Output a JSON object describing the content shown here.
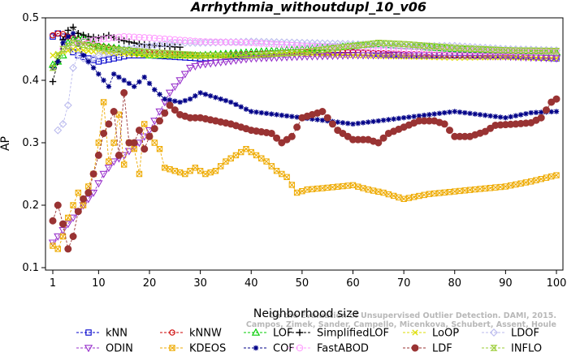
{
  "chart_data": {
    "type": "line",
    "title": "Arrhythmia_withoutdupl_10_v06",
    "xlabel": "Neighborhood size",
    "ylabel": "AP",
    "xlim": [
      1,
      100
    ],
    "ylim": [
      0.1,
      0.5
    ],
    "x_ticks": [
      1,
      10,
      20,
      30,
      40,
      50,
      60,
      70,
      80,
      90,
      100
    ],
    "y_ticks": [
      0.1,
      0.2,
      0.3,
      0.4,
      0.5
    ],
    "legend_position": "bottom",
    "watermark_lines": [
      "On the Evaluation of Unsupervised Outlier Detection. DAMI, 2015.",
      "Campos, Zimek, Sander, Campello, Micenkova, Schubert, Assent, Houle"
    ],
    "series": [
      {
        "name": "kNN",
        "color": "#0000cc",
        "marker": "square",
        "dash": "dash",
        "knots": [
          [
            1,
            0.47
          ],
          [
            2,
            0.475
          ],
          [
            3,
            0.47
          ],
          [
            4,
            0.455
          ],
          [
            5,
            0.445
          ],
          [
            6,
            0.44
          ],
          [
            8,
            0.435
          ],
          [
            10,
            0.43
          ],
          [
            13,
            0.435
          ],
          [
            16,
            0.44
          ],
          [
            20,
            0.44
          ],
          [
            30,
            0.435
          ],
          [
            40,
            0.44
          ],
          [
            50,
            0.445
          ],
          [
            60,
            0.445
          ],
          [
            70,
            0.44
          ],
          [
            80,
            0.44
          ],
          [
            90,
            0.44
          ],
          [
            100,
            0.435
          ]
        ]
      },
      {
        "name": "kNNW",
        "color": "#cc0000",
        "marker": "circle",
        "dash": "dash",
        "knots": [
          [
            1,
            0.472
          ],
          [
            2,
            0.475
          ],
          [
            3,
            0.474
          ],
          [
            4,
            0.47
          ],
          [
            5,
            0.468
          ],
          [
            6,
            0.465
          ],
          [
            8,
            0.46
          ],
          [
            10,
            0.455
          ],
          [
            14,
            0.45
          ],
          [
            20,
            0.445
          ],
          [
            30,
            0.44
          ],
          [
            40,
            0.442
          ],
          [
            50,
            0.445
          ],
          [
            60,
            0.445
          ],
          [
            70,
            0.442
          ],
          [
            80,
            0.44
          ],
          [
            90,
            0.44
          ],
          [
            100,
            0.44
          ]
        ]
      },
      {
        "name": "LOF",
        "color": "#00cc00",
        "marker": "triangle",
        "dash": "dash",
        "knots": [
          [
            1,
            0.425
          ],
          [
            2,
            0.43
          ],
          [
            3,
            0.44
          ],
          [
            4,
            0.46
          ],
          [
            5,
            0.465
          ],
          [
            7,
            0.47
          ],
          [
            10,
            0.455
          ],
          [
            15,
            0.45
          ],
          [
            20,
            0.44
          ],
          [
            30,
            0.44
          ],
          [
            40,
            0.445
          ],
          [
            50,
            0.45
          ],
          [
            60,
            0.455
          ],
          [
            65,
            0.458
          ],
          [
            70,
            0.455
          ],
          [
            80,
            0.45
          ],
          [
            90,
            0.447
          ],
          [
            100,
            0.445
          ]
        ]
      },
      {
        "name": "SimplifiedLOF",
        "color": "#000000",
        "marker": "plus",
        "dash": "dash",
        "knots": [
          [
            1,
            0.398
          ],
          [
            2,
            0.43
          ],
          [
            3,
            0.465
          ],
          [
            4,
            0.48
          ],
          [
            5,
            0.485
          ],
          [
            6,
            0.475
          ],
          [
            8,
            0.47
          ],
          [
            10,
            0.468
          ],
          [
            12,
            0.472
          ],
          [
            14,
            0.465
          ],
          [
            18,
            0.458
          ],
          [
            22,
            0.455
          ],
          [
            26,
            0.453
          ]
        ]
      },
      {
        "name": "LoOP",
        "color": "#dddd00",
        "marker": "x",
        "dash": "dash",
        "knots": [
          [
            1,
            0.44
          ],
          [
            3,
            0.445
          ],
          [
            5,
            0.45
          ],
          [
            10,
            0.445
          ],
          [
            20,
            0.44
          ],
          [
            30,
            0.438
          ],
          [
            40,
            0.44
          ],
          [
            50,
            0.442
          ],
          [
            60,
            0.44
          ],
          [
            70,
            0.438
          ],
          [
            80,
            0.436
          ],
          [
            90,
            0.437
          ],
          [
            100,
            0.435
          ]
        ]
      },
      {
        "name": "LDOF",
        "color": "#bbbbee",
        "marker": "diamond",
        "dash": "dash",
        "knots": [
          [
            2,
            0.32
          ],
          [
            3,
            0.33
          ],
          [
            4,
            0.36
          ],
          [
            5,
            0.42
          ],
          [
            6,
            0.44
          ],
          [
            8,
            0.43
          ],
          [
            10,
            0.44
          ],
          [
            15,
            0.45
          ],
          [
            20,
            0.455
          ],
          [
            25,
            0.46
          ],
          [
            30,
            0.46
          ],
          [
            40,
            0.462
          ],
          [
            50,
            0.46
          ],
          [
            60,
            0.458
          ],
          [
            70,
            0.455
          ],
          [
            80,
            0.455
          ],
          [
            90,
            0.45
          ],
          [
            100,
            0.448
          ]
        ]
      },
      {
        "name": "ODIN",
        "color": "#9933cc",
        "marker": "triangle-down",
        "dash": "dash",
        "knots": [
          [
            1,
            0.14
          ],
          [
            3,
            0.16
          ],
          [
            5,
            0.18
          ],
          [
            7,
            0.2
          ],
          [
            9,
            0.22
          ],
          [
            11,
            0.25
          ],
          [
            13,
            0.27
          ],
          [
            15,
            0.28
          ],
          [
            18,
            0.3
          ],
          [
            20,
            0.32
          ],
          [
            22,
            0.35
          ],
          [
            24,
            0.38
          ],
          [
            26,
            0.4
          ],
          [
            28,
            0.42
          ],
          [
            30,
            0.425
          ],
          [
            35,
            0.43
          ],
          [
            40,
            0.435
          ],
          [
            50,
            0.438
          ],
          [
            60,
            0.44
          ],
          [
            70,
            0.44
          ],
          [
            80,
            0.44
          ],
          [
            90,
            0.438
          ],
          [
            100,
            0.435
          ]
        ]
      },
      {
        "name": "KDEOS",
        "color": "#eeaa00",
        "marker": "square-x",
        "dash": "dash",
        "knots": [
          [
            1,
            0.135
          ],
          [
            2,
            0.13
          ],
          [
            3,
            0.15
          ],
          [
            4,
            0.18
          ],
          [
            5,
            0.2
          ],
          [
            6,
            0.22
          ],
          [
            7,
            0.2
          ],
          [
            8,
            0.23
          ],
          [
            9,
            0.25
          ],
          [
            10,
            0.3
          ],
          [
            11,
            0.365
          ],
          [
            12,
            0.27
          ],
          [
            13,
            0.3
          ],
          [
            14,
            0.345
          ],
          [
            15,
            0.265
          ],
          [
            16,
            0.3
          ],
          [
            17,
            0.29
          ],
          [
            18,
            0.25
          ],
          [
            19,
            0.33
          ],
          [
            20,
            0.31
          ],
          [
            21,
            0.3
          ],
          [
            22,
            0.29
          ],
          [
            23,
            0.26
          ],
          [
            25,
            0.255
          ],
          [
            27,
            0.25
          ],
          [
            29,
            0.26
          ],
          [
            31,
            0.25
          ],
          [
            33,
            0.255
          ],
          [
            35,
            0.27
          ],
          [
            37,
            0.28
          ],
          [
            39,
            0.29
          ],
          [
            41,
            0.28
          ],
          [
            43,
            0.27
          ],
          [
            45,
            0.255
          ],
          [
            47,
            0.245
          ],
          [
            49,
            0.22
          ],
          [
            51,
            0.225
          ],
          [
            55,
            0.228
          ],
          [
            60,
            0.232
          ],
          [
            63,
            0.225
          ],
          [
            66,
            0.22
          ],
          [
            70,
            0.21
          ],
          [
            75,
            0.218
          ],
          [
            80,
            0.222
          ],
          [
            85,
            0.226
          ],
          [
            90,
            0.23
          ],
          [
            95,
            0.238
          ],
          [
            100,
            0.248
          ]
        ]
      },
      {
        "name": "COF",
        "color": "#000088",
        "marker": "star",
        "dash": "dash",
        "knots": [
          [
            1,
            0.42
          ],
          [
            2,
            0.43
          ],
          [
            3,
            0.46
          ],
          [
            4,
            0.47
          ],
          [
            5,
            0.475
          ],
          [
            7,
            0.44
          ],
          [
            9,
            0.42
          ],
          [
            10,
            0.41
          ],
          [
            11,
            0.4
          ],
          [
            12,
            0.39
          ],
          [
            13,
            0.41
          ],
          [
            15,
            0.4
          ],
          [
            17,
            0.39
          ],
          [
            19,
            0.405
          ],
          [
            21,
            0.385
          ],
          [
            23,
            0.37
          ],
          [
            26,
            0.365
          ],
          [
            28,
            0.37
          ],
          [
            30,
            0.38
          ],
          [
            32,
            0.375
          ],
          [
            34,
            0.37
          ],
          [
            36,
            0.365
          ],
          [
            40,
            0.35
          ],
          [
            45,
            0.345
          ],
          [
            50,
            0.34
          ],
          [
            55,
            0.335
          ],
          [
            60,
            0.33
          ],
          [
            65,
            0.335
          ],
          [
            70,
            0.34
          ],
          [
            75,
            0.345
          ],
          [
            80,
            0.35
          ],
          [
            85,
            0.345
          ],
          [
            90,
            0.34
          ],
          [
            95,
            0.348
          ],
          [
            100,
            0.35
          ]
        ]
      },
      {
        "name": "FastABOD",
        "color": "#ff99ff",
        "marker": "circle-small",
        "dash": "dash",
        "knots": [
          [
            3,
            0.45
          ],
          [
            5,
            0.46
          ],
          [
            10,
            0.465
          ],
          [
            15,
            0.47
          ],
          [
            20,
            0.468
          ],
          [
            30,
            0.462
          ],
          [
            40,
            0.46
          ],
          [
            50,
            0.455
          ],
          [
            60,
            0.452
          ],
          [
            70,
            0.45
          ],
          [
            80,
            0.448
          ],
          [
            90,
            0.446
          ],
          [
            100,
            0.445
          ]
        ]
      },
      {
        "name": "LDF",
        "color": "#993333",
        "marker": "circle-dot",
        "dash": "dash",
        "knots": [
          [
            1,
            0.175
          ],
          [
            2,
            0.2
          ],
          [
            3,
            0.17
          ],
          [
            4,
            0.13
          ],
          [
            5,
            0.15
          ],
          [
            6,
            0.19
          ],
          [
            7,
            0.21
          ],
          [
            8,
            0.22
          ],
          [
            9,
            0.25
          ],
          [
            10,
            0.28
          ],
          [
            11,
            0.315
          ],
          [
            12,
            0.33
          ],
          [
            13,
            0.35
          ],
          [
            14,
            0.28
          ],
          [
            15,
            0.38
          ],
          [
            16,
            0.3
          ],
          [
            17,
            0.3
          ],
          [
            18,
            0.32
          ],
          [
            19,
            0.29
          ],
          [
            20,
            0.31
          ],
          [
            22,
            0.335
          ],
          [
            24,
            0.36
          ],
          [
            26,
            0.345
          ],
          [
            28,
            0.34
          ],
          [
            30,
            0.34
          ],
          [
            33,
            0.335
          ],
          [
            36,
            0.33
          ],
          [
            40,
            0.32
          ],
          [
            44,
            0.315
          ],
          [
            46,
            0.3
          ],
          [
            48,
            0.31
          ],
          [
            50,
            0.34
          ],
          [
            54,
            0.35
          ],
          [
            57,
            0.32
          ],
          [
            60,
            0.305
          ],
          [
            63,
            0.305
          ],
          [
            65,
            0.3
          ],
          [
            67,
            0.315
          ],
          [
            70,
            0.325
          ],
          [
            73,
            0.335
          ],
          [
            76,
            0.335
          ],
          [
            78,
            0.33
          ],
          [
            80,
            0.31
          ],
          [
            83,
            0.31
          ],
          [
            86,
            0.318
          ],
          [
            88,
            0.328
          ],
          [
            92,
            0.33
          ],
          [
            95,
            0.332
          ],
          [
            97,
            0.34
          ],
          [
            99,
            0.365
          ],
          [
            100,
            0.37
          ]
        ]
      },
      {
        "name": "INFLO",
        "color": "#99cc33",
        "marker": "hourglass",
        "dash": "dash",
        "knots": [
          [
            1,
            0.42
          ],
          [
            2,
            0.44
          ],
          [
            3,
            0.45
          ],
          [
            5,
            0.46
          ],
          [
            8,
            0.455
          ],
          [
            12,
            0.45
          ],
          [
            20,
            0.445
          ],
          [
            30,
            0.44
          ],
          [
            40,
            0.44
          ],
          [
            50,
            0.445
          ],
          [
            60,
            0.455
          ],
          [
            65,
            0.46
          ],
          [
            70,
            0.458
          ],
          [
            80,
            0.452
          ],
          [
            90,
            0.448
          ],
          [
            100,
            0.447
          ]
        ]
      }
    ]
  }
}
